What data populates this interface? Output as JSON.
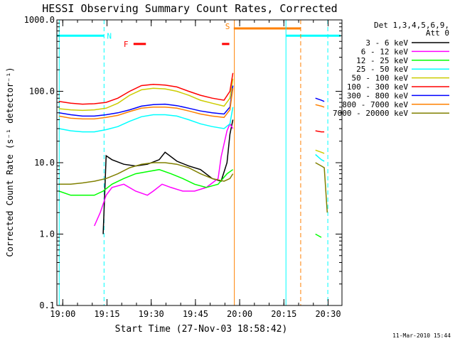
{
  "chart_data": {
    "type": "line",
    "title": "HESSI Observing Summary Count Rates, Corrected",
    "xlabel": "Start Time (27-Nov-03 18:58:42)",
    "ylabel": "Corrected Count Rate (s⁻¹ detector⁻¹)",
    "y_scale": "log",
    "ylim": [
      0.1,
      1000
    ],
    "xlim_minutes_after_start": [
      -0.7,
      96
    ],
    "x_ticks": [
      {
        "label": "19:00",
        "minute": 1.3
      },
      {
        "label": "19:15",
        "minute": 16.3
      },
      {
        "label": "19:30",
        "minute": 31.3
      },
      {
        "label": "19:45",
        "minute": 46.3
      },
      {
        "label": "20:00",
        "minute": 61.3
      },
      {
        "label": "20:15",
        "minute": 76.3
      },
      {
        "label": "20:30",
        "minute": 91.3
      }
    ],
    "y_ticks": [
      {
        "label": "1000.0",
        "value": 1000
      },
      {
        "label": "100.0",
        "value": 100
      },
      {
        "label": "10.0",
        "value": 10
      },
      {
        "label": "1.0",
        "value": 1
      },
      {
        "label": "0.1",
        "value": 0.1
      }
    ],
    "legend_title_line1": "Det 1,3,4,5,6,9,",
    "legend_title_line2": "Att 0",
    "legend_position": "outside-right",
    "series": [
      {
        "name": "3 - 6 keV",
        "color": "#000000",
        "x": [
          15.0,
          16.0,
          18.0,
          22.0,
          26.0,
          30.0,
          34.0,
          36.0,
          40.0,
          44.0,
          48.0,
          52.0,
          55.0,
          57.0,
          58.0,
          59.0
        ],
        "y": [
          1.0,
          12.5,
          11.0,
          9.5,
          9.0,
          9.5,
          11.0,
          14.0,
          10.5,
          9.0,
          8.0,
          6.0,
          5.5,
          10.0,
          25.0,
          40.0
        ]
      },
      {
        "name": "6 - 12 keV",
        "color": "#ff00ff",
        "x": [
          12.0,
          14.0,
          16.0,
          18.0,
          22.0,
          26.0,
          30.0,
          32.0,
          35.0,
          38.0,
          42.0,
          46.0,
          50.0,
          54.0,
          55.0,
          57.0,
          58.0,
          59.0
        ],
        "y": [
          1.3,
          2.0,
          3.5,
          4.5,
          5.0,
          4.0,
          3.5,
          4.0,
          5.0,
          4.5,
          4.0,
          4.0,
          4.5,
          6.0,
          12.0,
          28.0,
          35.0,
          30.0
        ]
      },
      {
        "name": "12 - 25 keV",
        "color": "#00ff00",
        "x": [
          0.0,
          4.0,
          8.0,
          12.0,
          15.0,
          18.0,
          22.0,
          26.0,
          30.0,
          34.0,
          38.0,
          42.0,
          46.0,
          50.0,
          54.0,
          57.0,
          59.0,
          87.0,
          89.0
        ],
        "y": [
          4.0,
          3.5,
          3.5,
          3.5,
          4.0,
          5.0,
          6.0,
          7.0,
          7.5,
          8.0,
          7.0,
          6.0,
          5.0,
          4.5,
          5.0,
          7.0,
          8.0,
          1.0,
          0.9
        ]
      },
      {
        "name": "25 - 50 keV",
        "color": "#00ffff",
        "x": [
          0.0,
          4.0,
          8.0,
          12.0,
          16.0,
          20.0,
          24.0,
          28.0,
          32.0,
          36.0,
          40.0,
          44.0,
          48.0,
          52.0,
          56.0,
          58.0,
          59.0,
          87.0,
          89.0,
          90.0
        ],
        "y": [
          30.0,
          28.0,
          27.0,
          27.0,
          29.0,
          32.0,
          38.0,
          44.0,
          47.0,
          47.0,
          45.0,
          40.0,
          35.0,
          32.0,
          30.0,
          35.0,
          60.0,
          13.0,
          11.0,
          10.5
        ]
      },
      {
        "name": "50 - 100 keV",
        "color": "#cccc00",
        "x": [
          0.0,
          4.0,
          8.0,
          12.0,
          16.0,
          20.0,
          24.0,
          28.0,
          32.0,
          36.0,
          40.0,
          44.0,
          48.0,
          52.0,
          56.0,
          58.0,
          59.0,
          87.0,
          89.0,
          90.0
        ],
        "y": [
          57.0,
          55.0,
          54.0,
          55.0,
          58.0,
          68.0,
          88.0,
          105.0,
          110.0,
          108.0,
          100.0,
          88.0,
          75.0,
          68.0,
          62.0,
          80.0,
          150.0,
          15.0,
          14.0,
          13.5
        ]
      },
      {
        "name": "100 - 300 keV",
        "color": "#ff0000",
        "x": [
          0.0,
          4.0,
          8.0,
          12.0,
          16.0,
          20.0,
          24.0,
          28.0,
          32.0,
          36.0,
          40.0,
          44.0,
          48.0,
          52.0,
          56.0,
          58.0,
          59.0,
          87.0,
          89.0,
          90.0
        ],
        "y": [
          72.0,
          68.0,
          66.0,
          67.0,
          70.0,
          80.0,
          100.0,
          120.0,
          125.0,
          122.0,
          115.0,
          100.0,
          88.0,
          80.0,
          75.0,
          100.0,
          180.0,
          28.0,
          27.0,
          27.0
        ]
      },
      {
        "name": "300 - 800 keV",
        "color": "#0000ff",
        "x": [
          0.0,
          4.0,
          8.0,
          12.0,
          16.0,
          20.0,
          24.0,
          28.0,
          32.0,
          36.0,
          40.0,
          44.0,
          48.0,
          52.0,
          56.0,
          58.0,
          59.0,
          87.0,
          89.0,
          90.0
        ],
        "y": [
          50.0,
          47.0,
          45.0,
          45.0,
          47.0,
          50.0,
          55.0,
          62.0,
          65.0,
          66.0,
          63.0,
          58.0,
          53.0,
          50.0,
          48.0,
          60.0,
          120.0,
          80.0,
          75.0,
          72.0
        ]
      },
      {
        "name": "800 - 7000 keV",
        "color": "#ff8000",
        "x": [
          0.0,
          4.0,
          8.0,
          12.0,
          16.0,
          20.0,
          24.0,
          28.0,
          32.0,
          36.0,
          40.0,
          44.0,
          48.0,
          52.0,
          56.0,
          58.0,
          59.0,
          87.0,
          89.0,
          90.0
        ],
        "y": [
          45.0,
          42.0,
          41.0,
          41.0,
          43.0,
          46.0,
          52.0,
          58.0,
          60.0,
          60.0,
          58.0,
          53.0,
          48.0,
          45.0,
          43.0,
          55.0,
          110.0,
          65.0,
          62.0,
          60.0
        ]
      },
      {
        "name": "7000 - 20000 keV",
        "color": "#808000",
        "x": [
          0.0,
          4.0,
          8.0,
          12.0,
          16.0,
          20.0,
          24.0,
          28.0,
          32.0,
          36.0,
          40.0,
          44.0,
          48.0,
          52.0,
          56.0,
          58.0,
          59.0,
          87.0,
          89.0,
          90.0,
          91.0
        ],
        "y": [
          5.0,
          5.0,
          5.2,
          5.5,
          6.0,
          7.0,
          8.5,
          9.5,
          10.0,
          10.0,
          9.5,
          8.5,
          7.0,
          6.0,
          5.5,
          6.0,
          7.0,
          10.0,
          9.0,
          8.5,
          2.0
        ]
      }
    ],
    "bars": [
      {
        "label": "N",
        "color": "#00ffff",
        "y": 600,
        "segments": [
          [
            -0.7,
            15.3
          ],
          [
            77.0,
            95.5
          ]
        ]
      },
      {
        "label": "F",
        "color": "#ff0000",
        "y": 460,
        "segments": [
          [
            25.3,
            29.5
          ],
          [
            55.3,
            57.8
          ]
        ]
      },
      {
        "label": "S",
        "color": "#ff8000",
        "y": 760,
        "segments": [
          [
            59.3,
            82.0
          ]
        ]
      }
    ],
    "vertical_lines": [
      {
        "minute": 0.1,
        "color": "#00ffff",
        "style": "solid"
      },
      {
        "minute": 15.3,
        "color": "#00ffff",
        "style": "dashed"
      },
      {
        "minute": 59.5,
        "color": "#ff8000",
        "style": "solid"
      },
      {
        "minute": 77.0,
        "color": "#00ffff",
        "style": "solid"
      },
      {
        "minute": 82.0,
        "color": "#ff8000",
        "style": "dashed"
      },
      {
        "minute": 91.2,
        "color": "#00ffff",
        "style": "dashed"
      }
    ]
  },
  "footer_date": "11-Mar-2010 15:44"
}
